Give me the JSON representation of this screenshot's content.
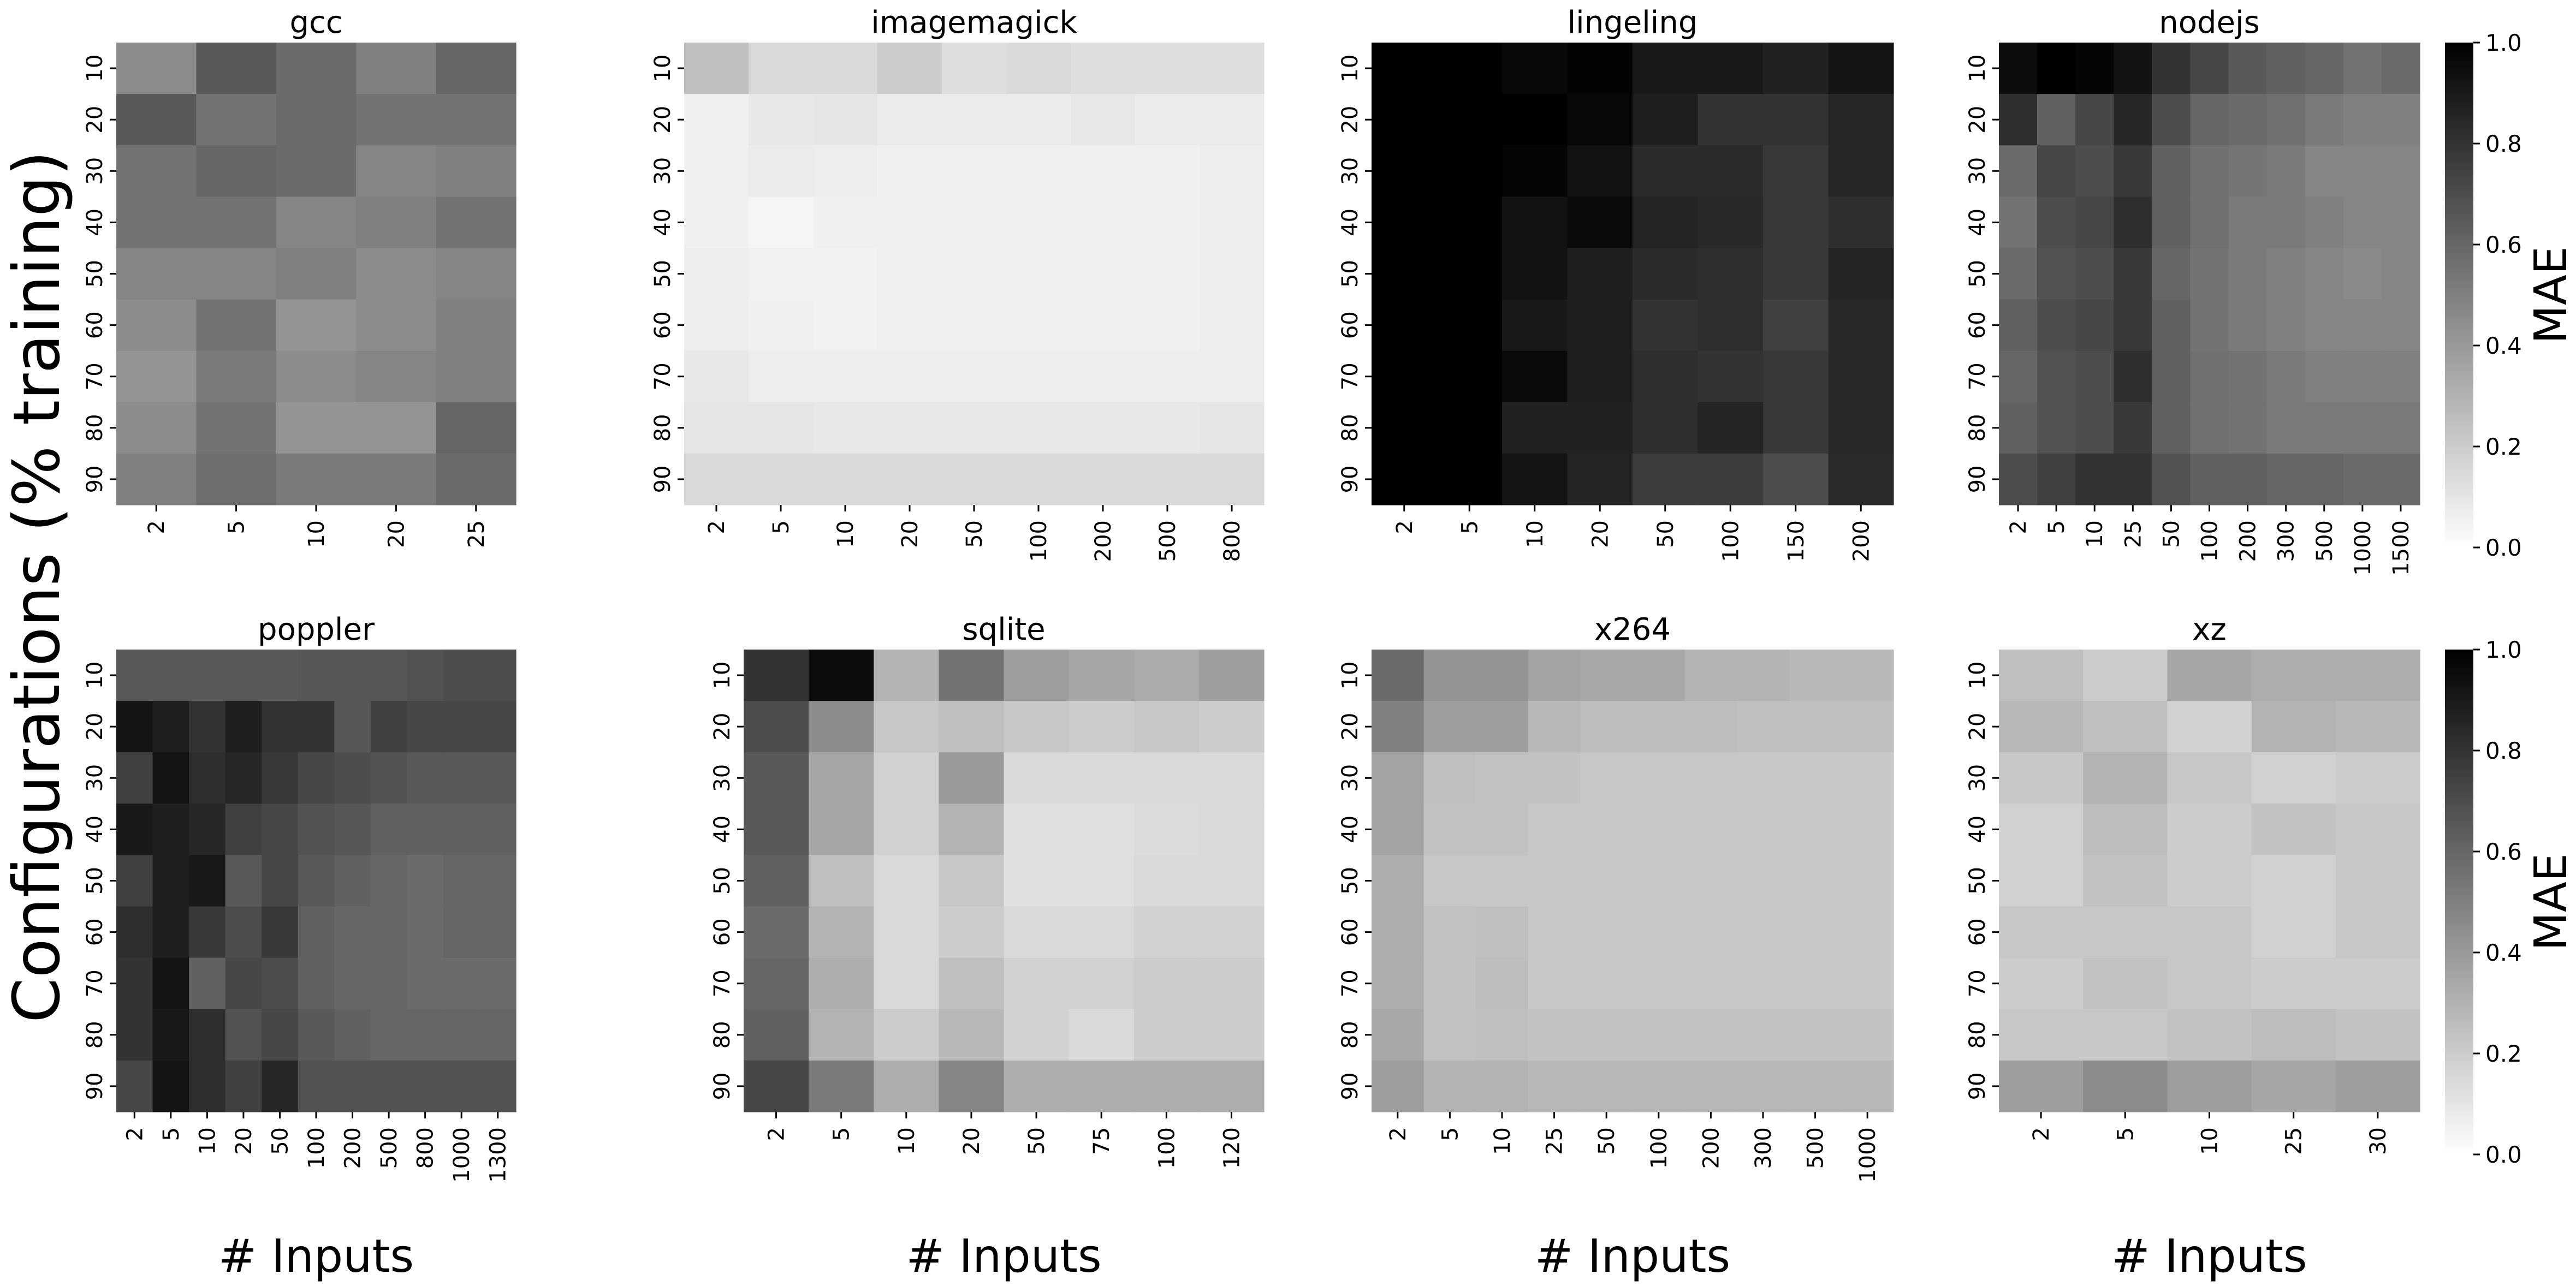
{
  "figure": {
    "ylabel": "Configurations (% training)",
    "colorbar_label": "MAE",
    "colorbar_ticks": [
      "0.0",
      "0.2",
      "0.4",
      "0.6",
      "0.8",
      "1.0"
    ],
    "colormap": "greys (0.0 = #ffffff, 1.0 = #000000)"
  },
  "chart_data": [
    {
      "type": "heatmap",
      "title": "gcc",
      "xlabel": "",
      "x": [
        "2",
        "5",
        "10",
        "20",
        "25"
      ],
      "y": [
        "10",
        "20",
        "30",
        "40",
        "50",
        "60",
        "70",
        "80",
        "90"
      ],
      "z": [
        [
          0.45,
          0.65,
          0.58,
          0.5,
          0.6
        ],
        [
          0.65,
          0.55,
          0.58,
          0.55,
          0.55
        ],
        [
          0.55,
          0.6,
          0.58,
          0.48,
          0.5
        ],
        [
          0.55,
          0.55,
          0.48,
          0.5,
          0.55
        ],
        [
          0.48,
          0.48,
          0.5,
          0.45,
          0.48
        ],
        [
          0.45,
          0.55,
          0.42,
          0.45,
          0.5
        ],
        [
          0.42,
          0.52,
          0.45,
          0.48,
          0.5
        ],
        [
          0.45,
          0.55,
          0.42,
          0.42,
          0.6
        ],
        [
          0.5,
          0.57,
          0.52,
          0.52,
          0.58
        ]
      ],
      "zlim": [
        0,
        1
      ]
    },
    {
      "type": "heatmap",
      "title": "imagemagick",
      "xlabel": "",
      "x": [
        "2",
        "5",
        "10",
        "20",
        "50",
        "100",
        "200",
        "500",
        "800"
      ],
      "y": [
        "10",
        "20",
        "30",
        "40",
        "50",
        "60",
        "70",
        "80",
        "90"
      ],
      "z": [
        [
          0.25,
          0.15,
          0.15,
          0.2,
          0.13,
          0.15,
          0.13,
          0.13,
          0.13
        ],
        [
          0.06,
          0.09,
          0.1,
          0.08,
          0.08,
          0.08,
          0.09,
          0.08,
          0.08
        ],
        [
          0.06,
          0.08,
          0.07,
          0.06,
          0.06,
          0.06,
          0.06,
          0.06,
          0.07
        ],
        [
          0.06,
          0.04,
          0.06,
          0.06,
          0.06,
          0.06,
          0.06,
          0.06,
          0.07
        ],
        [
          0.07,
          0.05,
          0.05,
          0.06,
          0.06,
          0.06,
          0.06,
          0.06,
          0.07
        ],
        [
          0.07,
          0.06,
          0.05,
          0.06,
          0.06,
          0.06,
          0.06,
          0.06,
          0.07
        ],
        [
          0.09,
          0.07,
          0.07,
          0.07,
          0.07,
          0.07,
          0.07,
          0.07,
          0.07
        ],
        [
          0.1,
          0.1,
          0.09,
          0.09,
          0.09,
          0.09,
          0.09,
          0.09,
          0.1
        ],
        [
          0.15,
          0.15,
          0.15,
          0.15,
          0.15,
          0.15,
          0.15,
          0.15,
          0.15
        ]
      ],
      "zlim": [
        0,
        1
      ]
    },
    {
      "type": "heatmap",
      "title": "lingeling",
      "xlabel": "",
      "x": [
        "2",
        "5",
        "10",
        "20",
        "50",
        "100",
        "150",
        "200"
      ],
      "y": [
        "10",
        "20",
        "30",
        "40",
        "50",
        "60",
        "70",
        "80",
        "90"
      ],
      "z": [
        [
          1.0,
          1.0,
          0.97,
          0.99,
          0.9,
          0.9,
          0.87,
          0.92
        ],
        [
          1.0,
          1.0,
          1.0,
          0.97,
          0.88,
          0.8,
          0.8,
          0.85
        ],
        [
          1.0,
          1.0,
          0.98,
          0.93,
          0.83,
          0.83,
          0.78,
          0.85
        ],
        [
          1.0,
          1.0,
          0.93,
          0.96,
          0.86,
          0.84,
          0.78,
          0.82
        ],
        [
          1.0,
          1.0,
          0.93,
          0.88,
          0.83,
          0.82,
          0.78,
          0.86
        ],
        [
          1.0,
          1.0,
          0.9,
          0.88,
          0.8,
          0.82,
          0.75,
          0.84
        ],
        [
          1.0,
          1.0,
          0.96,
          0.88,
          0.82,
          0.8,
          0.78,
          0.84
        ],
        [
          1.0,
          1.0,
          0.87,
          0.87,
          0.82,
          0.86,
          0.78,
          0.84
        ],
        [
          1.0,
          1.0,
          0.92,
          0.86,
          0.76,
          0.76,
          0.7,
          0.83
        ]
      ],
      "zlim": [
        0,
        1
      ]
    },
    {
      "type": "heatmap",
      "title": "nodejs",
      "xlabel": "",
      "x": [
        "2",
        "5",
        "10",
        "25",
        "50",
        "100",
        "200",
        "300",
        "500",
        "1000",
        "1500"
      ],
      "y": [
        "10",
        "20",
        "30",
        "40",
        "50",
        "60",
        "70",
        "80",
        "90"
      ],
      "z": [
        [
          0.95,
          1.0,
          0.98,
          0.93,
          0.8,
          0.72,
          0.65,
          0.62,
          0.6,
          0.55,
          0.58
        ],
        [
          0.82,
          0.62,
          0.72,
          0.85,
          0.7,
          0.6,
          0.58,
          0.56,
          0.52,
          0.5,
          0.5
        ],
        [
          0.58,
          0.72,
          0.7,
          0.78,
          0.62,
          0.56,
          0.54,
          0.52,
          0.48,
          0.48,
          0.48
        ],
        [
          0.55,
          0.7,
          0.72,
          0.82,
          0.62,
          0.56,
          0.52,
          0.52,
          0.5,
          0.48,
          0.48
        ],
        [
          0.58,
          0.68,
          0.7,
          0.78,
          0.6,
          0.55,
          0.52,
          0.5,
          0.48,
          0.46,
          0.48
        ],
        [
          0.62,
          0.7,
          0.72,
          0.78,
          0.62,
          0.55,
          0.52,
          0.5,
          0.48,
          0.48,
          0.48
        ],
        [
          0.6,
          0.68,
          0.7,
          0.82,
          0.62,
          0.56,
          0.55,
          0.52,
          0.5,
          0.5,
          0.5
        ],
        [
          0.62,
          0.68,
          0.7,
          0.78,
          0.62,
          0.56,
          0.55,
          0.52,
          0.52,
          0.52,
          0.52
        ],
        [
          0.7,
          0.75,
          0.8,
          0.8,
          0.68,
          0.62,
          0.62,
          0.6,
          0.6,
          0.58,
          0.58
        ]
      ],
      "zlim": [
        0,
        1
      ]
    },
    {
      "type": "heatmap",
      "title": "poppler",
      "xlabel": "# Inputs",
      "x": [
        "2",
        "5",
        "10",
        "20",
        "50",
        "100",
        "200",
        "500",
        "800",
        "1000",
        "1300"
      ],
      "y": [
        "10",
        "20",
        "30",
        "40",
        "50",
        "60",
        "70",
        "80",
        "90"
      ],
      "z": [
        [
          0.65,
          0.65,
          0.65,
          0.65,
          0.65,
          0.66,
          0.66,
          0.66,
          0.68,
          0.7,
          0.7
        ],
        [
          0.92,
          0.88,
          0.8,
          0.88,
          0.8,
          0.8,
          0.66,
          0.75,
          0.72,
          0.72,
          0.72
        ],
        [
          0.75,
          0.92,
          0.82,
          0.85,
          0.78,
          0.72,
          0.7,
          0.68,
          0.65,
          0.65,
          0.65
        ],
        [
          0.9,
          0.88,
          0.85,
          0.75,
          0.72,
          0.68,
          0.66,
          0.62,
          0.62,
          0.62,
          0.62
        ],
        [
          0.75,
          0.88,
          0.9,
          0.65,
          0.72,
          0.65,
          0.62,
          0.6,
          0.58,
          0.6,
          0.6
        ],
        [
          0.82,
          0.88,
          0.78,
          0.7,
          0.78,
          0.62,
          0.6,
          0.6,
          0.58,
          0.6,
          0.6
        ],
        [
          0.8,
          0.92,
          0.62,
          0.72,
          0.7,
          0.62,
          0.6,
          0.6,
          0.58,
          0.58,
          0.58
        ],
        [
          0.8,
          0.9,
          0.82,
          0.68,
          0.72,
          0.65,
          0.62,
          0.6,
          0.6,
          0.6,
          0.6
        ],
        [
          0.72,
          0.92,
          0.82,
          0.75,
          0.85,
          0.68,
          0.68,
          0.68,
          0.68,
          0.68,
          0.68
        ]
      ],
      "zlim": [
        0,
        1
      ]
    },
    {
      "type": "heatmap",
      "title": "sqlite",
      "xlabel": "# Inputs",
      "x": [
        "2",
        "5",
        "10",
        "20",
        "50",
        "75",
        "100",
        "120"
      ],
      "y": [
        "10",
        "20",
        "30",
        "40",
        "50",
        "60",
        "70",
        "80",
        "90"
      ],
      "z": [
        [
          0.8,
          0.95,
          0.3,
          0.55,
          0.38,
          0.35,
          0.33,
          0.38
        ],
        [
          0.7,
          0.45,
          0.22,
          0.25,
          0.22,
          0.2,
          0.22,
          0.2
        ],
        [
          0.65,
          0.35,
          0.18,
          0.4,
          0.15,
          0.15,
          0.15,
          0.15
        ],
        [
          0.65,
          0.35,
          0.18,
          0.3,
          0.12,
          0.12,
          0.14,
          0.15
        ],
        [
          0.62,
          0.25,
          0.15,
          0.22,
          0.12,
          0.12,
          0.15,
          0.15
        ],
        [
          0.58,
          0.3,
          0.15,
          0.2,
          0.15,
          0.15,
          0.18,
          0.18
        ],
        [
          0.6,
          0.32,
          0.15,
          0.25,
          0.18,
          0.18,
          0.2,
          0.2
        ],
        [
          0.62,
          0.3,
          0.2,
          0.28,
          0.18,
          0.15,
          0.2,
          0.2
        ],
        [
          0.72,
          0.52,
          0.32,
          0.48,
          0.32,
          0.32,
          0.32,
          0.32
        ]
      ],
      "zlim": [
        0,
        1
      ]
    },
    {
      "type": "heatmap",
      "title": "x264",
      "xlabel": "# Inputs",
      "x": [
        "2",
        "5",
        "10",
        "25",
        "50",
        "100",
        "200",
        "300",
        "500",
        "1000"
      ],
      "y": [
        "10",
        "20",
        "30",
        "40",
        "50",
        "60",
        "70",
        "80",
        "90"
      ],
      "z": [
        [
          0.58,
          0.42,
          0.42,
          0.36,
          0.34,
          0.34,
          0.3,
          0.3,
          0.28,
          0.28
        ],
        [
          0.5,
          0.38,
          0.38,
          0.28,
          0.26,
          0.26,
          0.26,
          0.25,
          0.25,
          0.25
        ],
        [
          0.36,
          0.25,
          0.24,
          0.24,
          0.22,
          0.22,
          0.22,
          0.22,
          0.22,
          0.22
        ],
        [
          0.36,
          0.24,
          0.24,
          0.22,
          0.22,
          0.22,
          0.22,
          0.22,
          0.22,
          0.22
        ],
        [
          0.32,
          0.22,
          0.22,
          0.22,
          0.22,
          0.22,
          0.22,
          0.22,
          0.22,
          0.22
        ],
        [
          0.32,
          0.24,
          0.25,
          0.22,
          0.22,
          0.22,
          0.22,
          0.22,
          0.22,
          0.22
        ],
        [
          0.32,
          0.24,
          0.26,
          0.22,
          0.22,
          0.22,
          0.22,
          0.22,
          0.22,
          0.22
        ],
        [
          0.34,
          0.24,
          0.25,
          0.24,
          0.24,
          0.24,
          0.24,
          0.24,
          0.24,
          0.24
        ],
        [
          0.38,
          0.3,
          0.3,
          0.28,
          0.28,
          0.28,
          0.28,
          0.28,
          0.28,
          0.28
        ]
      ],
      "zlim": [
        0,
        1
      ]
    },
    {
      "type": "heatmap",
      "title": "xz",
      "xlabel": "# Inputs",
      "x": [
        "2",
        "5",
        "10",
        "25",
        "30"
      ],
      "y": [
        "10",
        "20",
        "30",
        "40",
        "50",
        "60",
        "70",
        "80",
        "90"
      ],
      "z": [
        [
          0.25,
          0.2,
          0.35,
          0.32,
          0.32
        ],
        [
          0.28,
          0.25,
          0.18,
          0.3,
          0.28
        ],
        [
          0.22,
          0.3,
          0.22,
          0.18,
          0.2
        ],
        [
          0.18,
          0.26,
          0.2,
          0.24,
          0.22
        ],
        [
          0.18,
          0.24,
          0.2,
          0.18,
          0.22
        ],
        [
          0.22,
          0.22,
          0.22,
          0.18,
          0.22
        ],
        [
          0.2,
          0.24,
          0.22,
          0.2,
          0.2
        ],
        [
          0.22,
          0.22,
          0.24,
          0.26,
          0.24
        ],
        [
          0.38,
          0.45,
          0.38,
          0.35,
          0.38
        ]
      ],
      "zlim": [
        0,
        1
      ]
    }
  ]
}
